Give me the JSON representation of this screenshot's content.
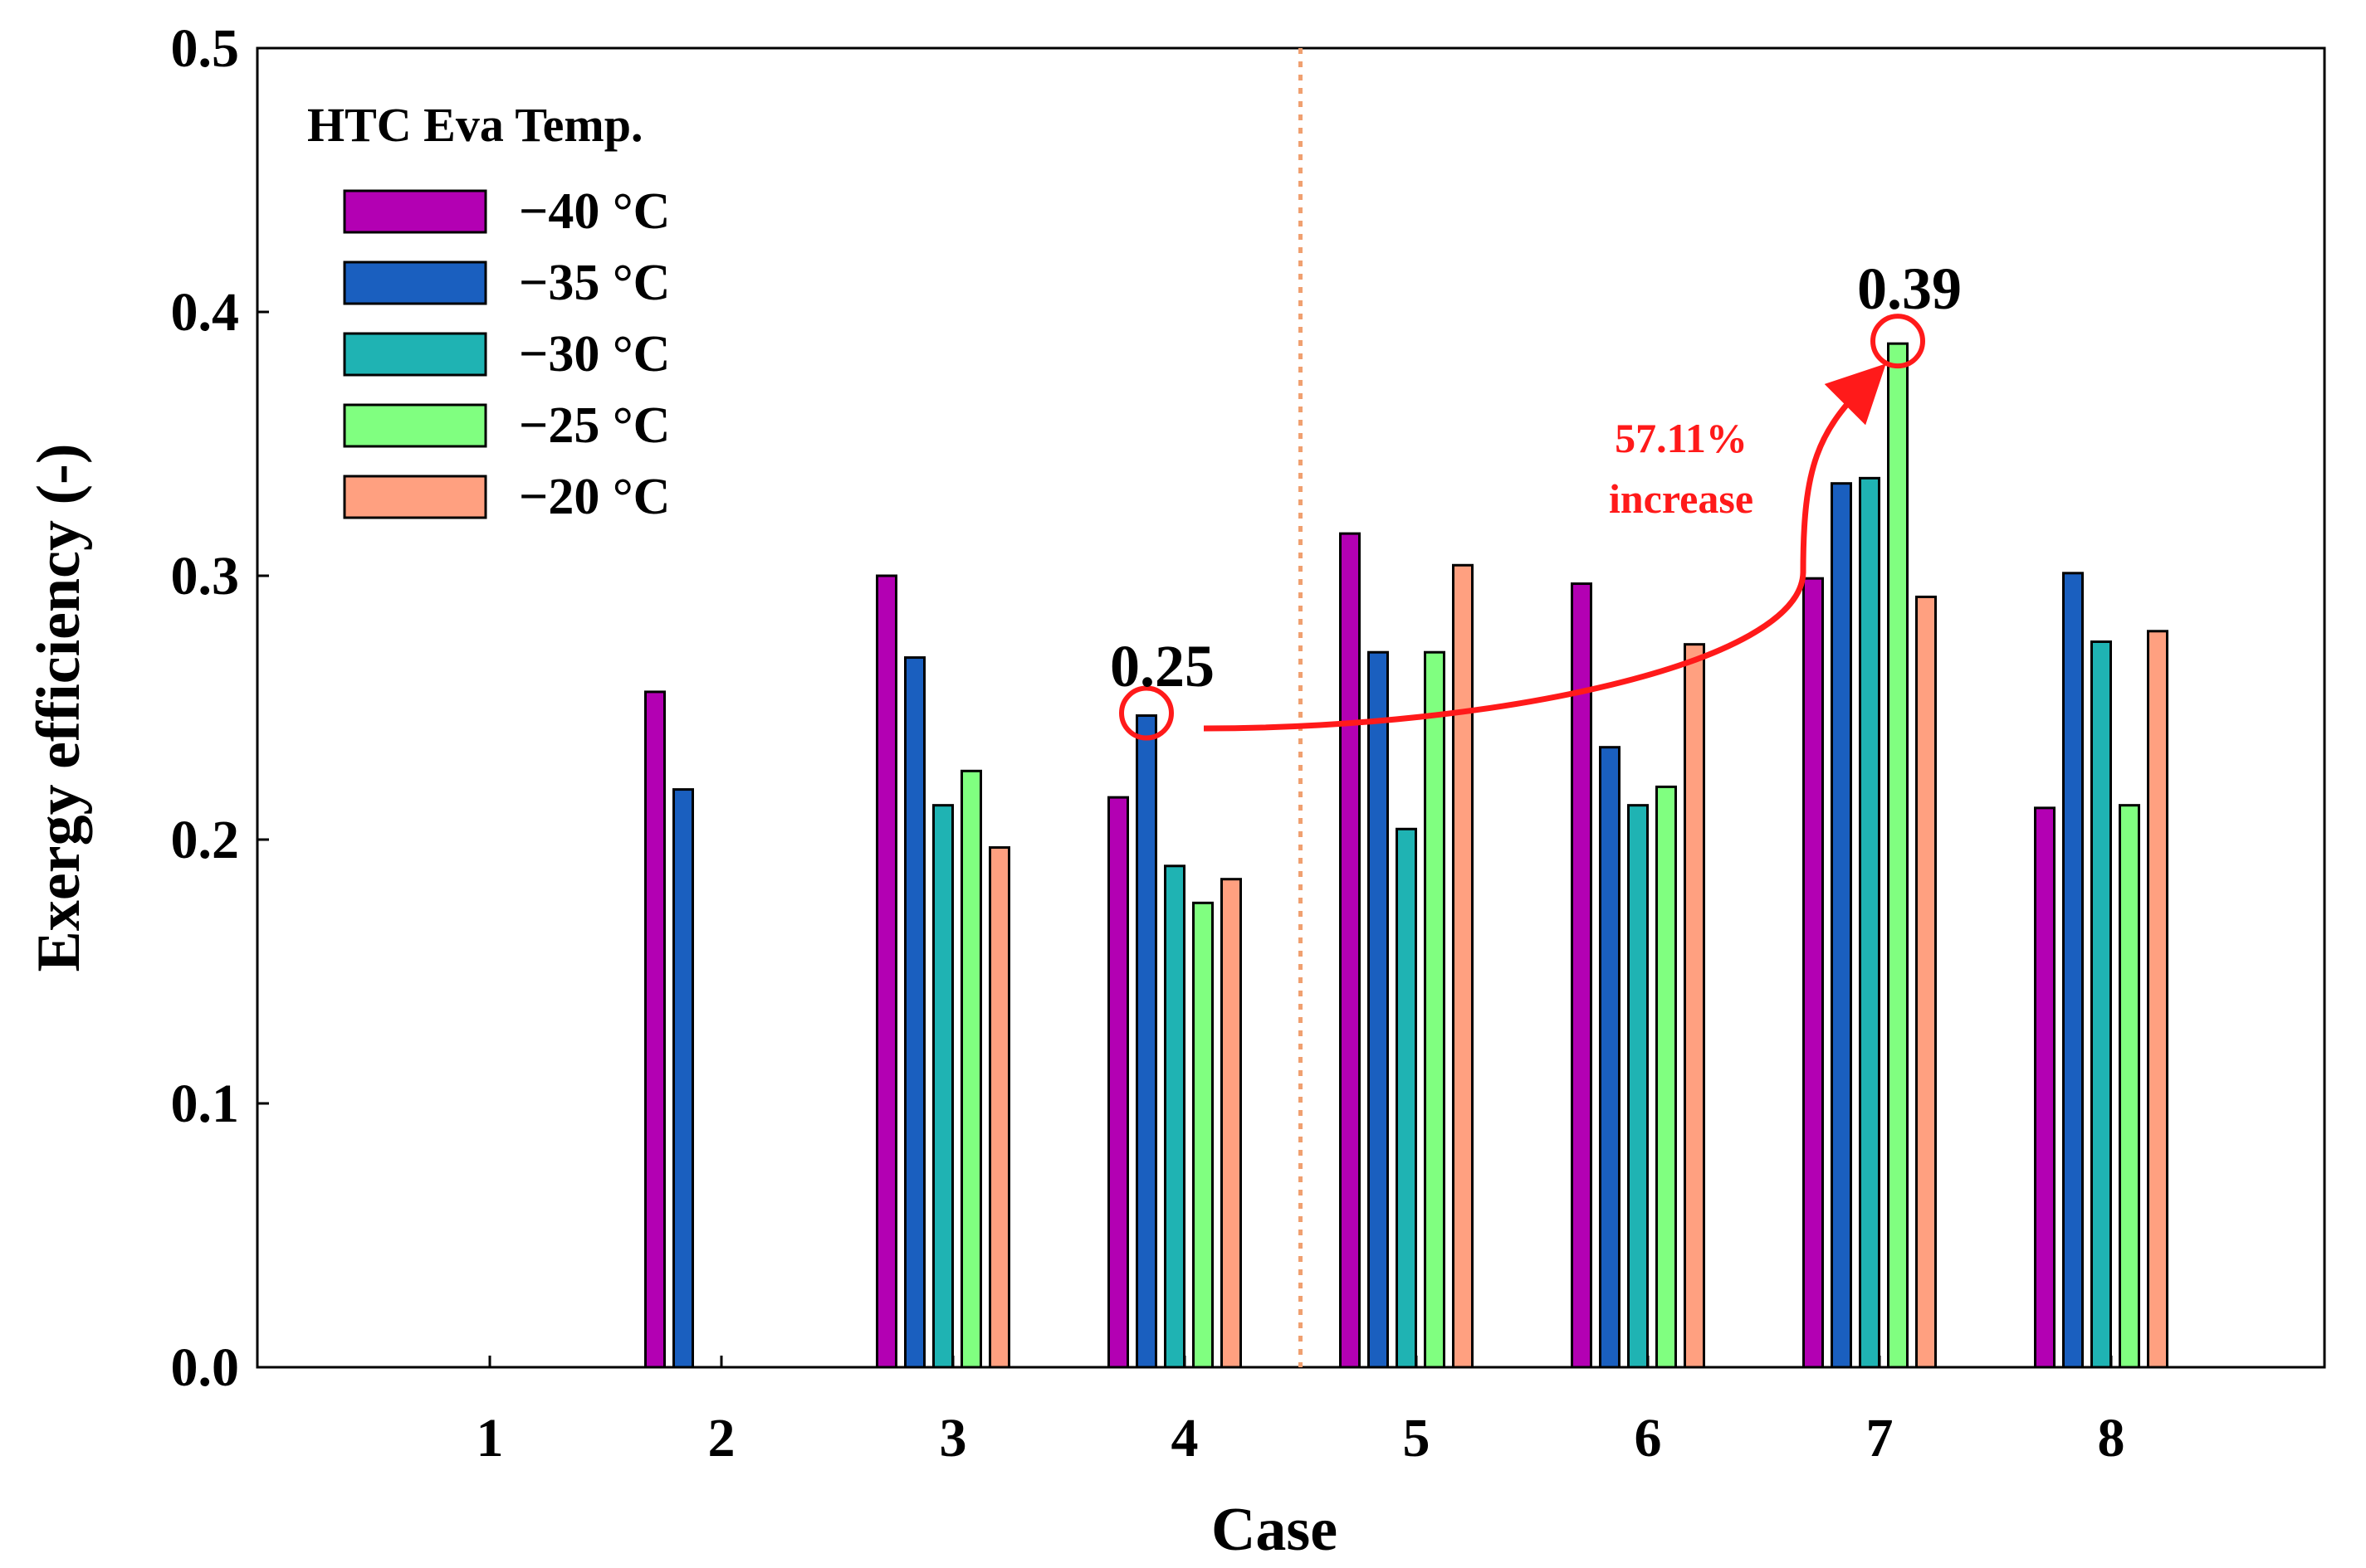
{
  "chart_data": {
    "type": "bar",
    "title": "",
    "xlabel": "Case",
    "ylabel": "Exergy efficiency (-)",
    "ylim": [
      0,
      0.5
    ],
    "yticks": [
      "0.0",
      "0.1",
      "0.2",
      "0.3",
      "0.4",
      "0.5"
    ],
    "categories": [
      "1",
      "2",
      "3",
      "4",
      "5",
      "6",
      "7",
      "8"
    ],
    "legend_title": "HTC Eva Temp.",
    "legend_position": "top-left",
    "series": [
      {
        "name": "−40 °C",
        "color": "#b300b3",
        "values": [
          null,
          0.256,
          0.3,
          0.216,
          0.316,
          0.297,
          0.299,
          0.212
        ]
      },
      {
        "name": "−35 °C",
        "color": "#1a5fbf",
        "values": [
          null,
          0.219,
          0.269,
          0.247,
          0.271,
          0.235,
          0.335,
          0.301
        ]
      },
      {
        "name": "−30 °C",
        "color": "#1fb3b3",
        "values": [
          null,
          null,
          0.213,
          0.19,
          0.204,
          0.213,
          0.337,
          0.275
        ]
      },
      {
        "name": "−25 °C",
        "color": "#80ff80",
        "values": [
          null,
          null,
          0.226,
          0.176,
          0.271,
          0.22,
          0.388,
          0.213
        ]
      },
      {
        "name": "−20 °C",
        "color": "#ffa080",
        "values": [
          null,
          null,
          0.197,
          0.185,
          0.304,
          0.274,
          0.292,
          0.279
        ]
      }
    ],
    "divider_after_category": "4",
    "annotations": {
      "low_label": "0.25",
      "high_label": "0.39",
      "increase_line1": "57.11%",
      "increase_line2": "increase",
      "arrow_color": "#ff1a1a"
    }
  }
}
